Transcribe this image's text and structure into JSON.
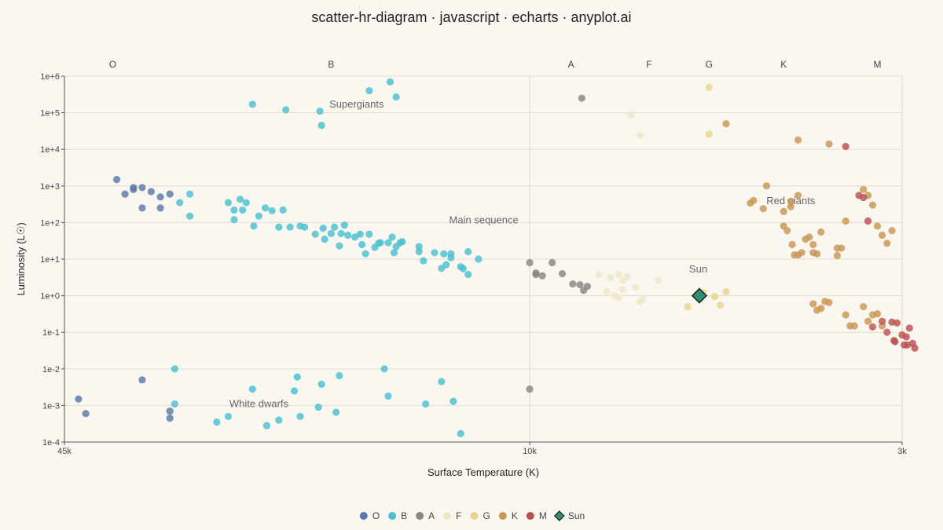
{
  "chart_data": {
    "type": "scatter",
    "title": "scatter-hr-diagram · javascript · echarts · anyplot.ai",
    "xlabel": "Surface Temperature (K)",
    "ylabel": "Luminosity (L☉)",
    "x_scale": "log",
    "x_reversed": true,
    "y_scale": "log",
    "xlim": [
      45000,
      3000
    ],
    "ylim": [
      0.0001,
      1000000
    ],
    "x_ticks": [
      {
        "value": 45000,
        "label": "45k"
      },
      {
        "value": 10000,
        "label": "10k"
      },
      {
        "value": 3000,
        "label": "3k"
      }
    ],
    "y_ticks": [
      {
        "value": 0.0001,
        "label": "1e-4"
      },
      {
        "value": 0.001,
        "label": "1e-3"
      },
      {
        "value": 0.01,
        "label": "1e-2"
      },
      {
        "value": 0.1,
        "label": "1e-1"
      },
      {
        "value": 1,
        "label": "1e+0"
      },
      {
        "value": 10,
        "label": "1e+1"
      },
      {
        "value": 100,
        "label": "1e+2"
      },
      {
        "value": 1000,
        "label": "1e+3"
      },
      {
        "value": 10000,
        "label": "1e+4"
      },
      {
        "value": 100000,
        "label": "1e+5"
      },
      {
        "value": 1000000,
        "label": "1e+6"
      }
    ],
    "grid": true,
    "legend_position": "bottom-center",
    "spectral_classes": [
      {
        "label": "O",
        "temp": 38500
      },
      {
        "label": "B",
        "temp": 19000
      },
      {
        "label": "A",
        "temp": 8750
      },
      {
        "label": "F",
        "temp": 6800
      },
      {
        "label": "G",
        "temp": 5600
      },
      {
        "label": "K",
        "temp": 4400
      },
      {
        "label": "M",
        "temp": 3250
      }
    ],
    "annotations": [
      {
        "text": "Supergiants",
        "x": 17500,
        "y": 140000
      },
      {
        "text": "Main sequence",
        "x": 11600,
        "y": 95
      },
      {
        "text": "Red giants",
        "x": 4300,
        "y": 320
      },
      {
        "text": "White dwarfs",
        "x": 24000,
        "y": 0.0009
      },
      {
        "text": "Sun",
        "x": 5800,
        "y": 4.3
      }
    ],
    "series": [
      {
        "name": "O",
        "color": "#5b78a8",
        "points": [
          [
            38000,
            1500
          ],
          [
            37000,
            600
          ],
          [
            36000,
            800
          ],
          [
            35000,
            900
          ],
          [
            36000,
            900
          ],
          [
            35000,
            250
          ],
          [
            34000,
            700
          ],
          [
            33000,
            250
          ],
          [
            33000,
            500
          ],
          [
            32000,
            600
          ],
          [
            35000,
            0.005
          ],
          [
            43000,
            0.0015
          ],
          [
            42000,
            0.0006
          ],
          [
            32000,
            0.0007
          ],
          [
            32000,
            0.00045
          ]
        ]
      },
      {
        "name": "B",
        "color": "#4bbfcf",
        "points": [
          [
            30000,
            600
          ],
          [
            31000,
            350
          ],
          [
            30000,
            150
          ],
          [
            26500,
            350
          ],
          [
            26000,
            220
          ],
          [
            26000,
            120
          ],
          [
            25500,
            430
          ],
          [
            25300,
            220
          ],
          [
            25000,
            350
          ],
          [
            24400,
            80
          ],
          [
            24000,
            150
          ],
          [
            23500,
            250
          ],
          [
            23000,
            210
          ],
          [
            22500,
            75
          ],
          [
            22200,
            220
          ],
          [
            21700,
            75
          ],
          [
            21000,
            80
          ],
          [
            20700,
            75
          ],
          [
            20000,
            48
          ],
          [
            19500,
            70
          ],
          [
            19400,
            35
          ],
          [
            19000,
            50
          ],
          [
            18800,
            75
          ],
          [
            18500,
            23
          ],
          [
            18400,
            50
          ],
          [
            18200,
            85
          ],
          [
            18000,
            45
          ],
          [
            17600,
            40
          ],
          [
            17300,
            48
          ],
          [
            17200,
            25
          ],
          [
            17000,
            14
          ],
          [
            16800,
            48
          ],
          [
            16500,
            21
          ],
          [
            16300,
            27
          ],
          [
            16200,
            28
          ],
          [
            15800,
            28
          ],
          [
            15600,
            40
          ],
          [
            15500,
            15
          ],
          [
            15400,
            22
          ],
          [
            15200,
            28
          ],
          [
            15100,
            30
          ],
          [
            14300,
            16
          ],
          [
            14300,
            22
          ],
          [
            14100,
            9
          ],
          [
            13600,
            15
          ],
          [
            13300,
            5.6
          ],
          [
            13200,
            14
          ],
          [
            13100,
            7
          ],
          [
            12900,
            11
          ],
          [
            12900,
            14
          ],
          [
            12500,
            6.2
          ],
          [
            12400,
            5.5
          ],
          [
            12200,
            3.8
          ],
          [
            12200,
            16
          ],
          [
            11800,
            10
          ],
          [
            24500,
            170000
          ],
          [
            22000,
            120000
          ],
          [
            19700,
            110000
          ],
          [
            19600,
            45000
          ],
          [
            16800,
            400000
          ],
          [
            15700,
            700000
          ],
          [
            15400,
            270000
          ],
          [
            31500,
            0.01
          ],
          [
            31500,
            0.0011
          ],
          [
            27500,
            0.00035
          ],
          [
            26500,
            0.0005
          ],
          [
            24500,
            0.0028
          ],
          [
            23400,
            0.00028
          ],
          [
            22500,
            0.0004
          ],
          [
            21400,
            0.0025
          ],
          [
            21200,
            0.006
          ],
          [
            21000,
            0.0005
          ],
          [
            19800,
            0.0009
          ],
          [
            19600,
            0.0038
          ],
          [
            18700,
            0.00065
          ],
          [
            18500,
            0.0065
          ],
          [
            16000,
            0.01
          ],
          [
            15800,
            0.0018
          ],
          [
            14000,
            0.0011
          ],
          [
            13300,
            0.0045
          ],
          [
            12800,
            0.0013
          ],
          [
            12500,
            0.00017
          ]
        ]
      },
      {
        "name": "A",
        "color": "#8a8580",
        "points": [
          [
            10000,
            8
          ],
          [
            9800,
            3.8
          ],
          [
            9800,
            4.2
          ],
          [
            9600,
            3.5
          ],
          [
            9300,
            8
          ],
          [
            9000,
            4
          ],
          [
            8700,
            2.1
          ],
          [
            8500,
            2
          ],
          [
            8400,
            1.4
          ],
          [
            8300,
            1.8
          ],
          [
            8450,
            250000
          ],
          [
            10000,
            0.0028
          ]
        ]
      },
      {
        "name": "F",
        "color": "#f0e7c8",
        "points": [
          [
            8000,
            3.8
          ],
          [
            7800,
            1.3
          ],
          [
            7700,
            3.2
          ],
          [
            7600,
            1.0
          ],
          [
            7500,
            3.8
          ],
          [
            7500,
            0.9
          ],
          [
            7400,
            2.6
          ],
          [
            7400,
            1.5
          ],
          [
            7300,
            3.3
          ],
          [
            7100,
            1.7
          ],
          [
            7000,
            0.7
          ],
          [
            6950,
            0.8
          ],
          [
            6600,
            2.6
          ],
          [
            7200,
            88000
          ],
          [
            7000,
            24000
          ]
        ]
      },
      {
        "name": "G",
        "color": "#e8d48e",
        "points": [
          [
            6000,
            0.5
          ],
          [
            5700,
            1.2
          ],
          [
            5500,
            0.95
          ],
          [
            5400,
            0.55
          ],
          [
            5300,
            1.3
          ],
          [
            5600,
            500000
          ],
          [
            5600,
            26000
          ]
        ]
      },
      {
        "name": "K",
        "color": "#c99653",
        "points": [
          [
            5300,
            50000
          ],
          [
            4900,
            340
          ],
          [
            4850,
            400
          ],
          [
            4700,
            240
          ],
          [
            4650,
            1000
          ],
          [
            4400,
            200
          ],
          [
            4400,
            80
          ],
          [
            4300,
            270
          ],
          [
            4300,
            380
          ],
          [
            4200,
            550
          ],
          [
            4350,
            60
          ],
          [
            4280,
            25
          ],
          [
            4250,
            13
          ],
          [
            4200,
            13
          ],
          [
            4150,
            15
          ],
          [
            4100,
            35
          ],
          [
            4050,
            40
          ],
          [
            4000,
            25
          ],
          [
            4000,
            15
          ],
          [
            3950,
            14
          ],
          [
            3900,
            55
          ],
          [
            3700,
            12.5
          ],
          [
            3700,
            20
          ],
          [
            3650,
            20
          ],
          [
            3600,
            110
          ],
          [
            3400,
            800
          ],
          [
            3350,
            550
          ],
          [
            3300,
            300
          ],
          [
            3250,
            80
          ],
          [
            3200,
            45
          ],
          [
            3150,
            27
          ],
          [
            3100,
            60
          ],
          [
            4000,
            0.6
          ],
          [
            3950,
            0.4
          ],
          [
            3900,
            0.45
          ],
          [
            3850,
            0.7
          ],
          [
            3800,
            0.65
          ],
          [
            3600,
            0.3
          ],
          [
            3550,
            0.15
          ],
          [
            3500,
            0.15
          ],
          [
            3400,
            0.5
          ],
          [
            3350,
            0.2
          ],
          [
            3300,
            0.3
          ],
          [
            3250,
            0.32
          ],
          [
            3200,
            0.15
          ],
          [
            4200,
            18000
          ],
          [
            3800,
            14000
          ]
        ]
      },
      {
        "name": "M",
        "color": "#bd5050",
        "points": [
          [
            3600,
            12000
          ],
          [
            3450,
            550
          ],
          [
            3400,
            480
          ],
          [
            3350,
            110
          ],
          [
            3300,
            0.14
          ],
          [
            3200,
            0.2
          ],
          [
            3150,
            0.1
          ],
          [
            3100,
            0.19
          ],
          [
            3080,
            0.06
          ],
          [
            3070,
            0.055
          ],
          [
            3050,
            0.18
          ],
          [
            3000,
            0.085
          ],
          [
            2980,
            0.045
          ],
          [
            2960,
            0.075
          ],
          [
            2950,
            0.045
          ],
          [
            2930,
            0.13
          ],
          [
            2900,
            0.05
          ],
          [
            2880,
            0.037
          ]
        ]
      },
      {
        "name": "Sun",
        "color": "#2f8f72",
        "marker": "diamond",
        "points": [
          [
            5778,
            1
          ]
        ]
      }
    ]
  }
}
